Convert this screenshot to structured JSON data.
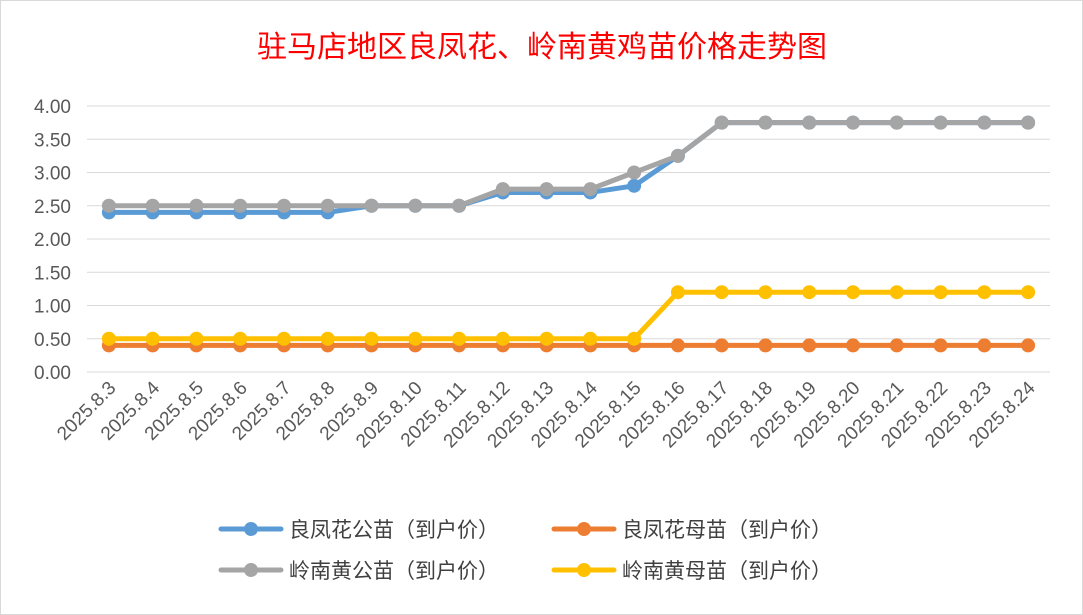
{
  "chart_data": {
    "type": "line",
    "title": "驻马店地区良凤花、岭南黄鸡苗价格走势图",
    "xlabel": "",
    "ylabel": "",
    "ylim": [
      0,
      4
    ],
    "y_ticks": [
      "0.00",
      "0.50",
      "1.00",
      "1.50",
      "2.00",
      "2.50",
      "3.00",
      "3.50",
      "4.00"
    ],
    "grid": true,
    "legend_position": "bottom",
    "categories": [
      "2025.8.3",
      "2025.8.4",
      "2025.8.5",
      "2025.8.6",
      "2025.8.7",
      "2025.8.8",
      "2025.8.9",
      "2025.8.10",
      "2025.8.11",
      "2025.8.12",
      "2025.8.13",
      "2025.8.14",
      "2025.8.15",
      "2025.8.16",
      "2025.8.17",
      "2025.8.18",
      "2025.8.19",
      "2025.8.20",
      "2025.8.21",
      "2025.8.22",
      "2025.8.23",
      "2025.8.24"
    ],
    "series": [
      {
        "name": "良凤花公苗（到户价）",
        "color": "#5b9bd5",
        "values": [
          2.4,
          2.4,
          2.4,
          2.4,
          2.4,
          2.4,
          2.5,
          2.5,
          2.5,
          2.7,
          2.7,
          2.7,
          2.8,
          3.25,
          3.75,
          3.75,
          3.75,
          3.75,
          3.75,
          3.75,
          3.75,
          3.75
        ]
      },
      {
        "name": "良凤花母苗（到户价）",
        "color": "#ed7d31",
        "values": [
          0.4,
          0.4,
          0.4,
          0.4,
          0.4,
          0.4,
          0.4,
          0.4,
          0.4,
          0.4,
          0.4,
          0.4,
          0.4,
          0.4,
          0.4,
          0.4,
          0.4,
          0.4,
          0.4,
          0.4,
          0.4,
          0.4
        ]
      },
      {
        "name": "岭南黄公苗（到户价）",
        "color": "#a5a5a5",
        "values": [
          2.5,
          2.5,
          2.5,
          2.5,
          2.5,
          2.5,
          2.5,
          2.5,
          2.5,
          2.75,
          2.75,
          2.75,
          3.0,
          3.25,
          3.75,
          3.75,
          3.75,
          3.75,
          3.75,
          3.75,
          3.75,
          3.75
        ]
      },
      {
        "name": "岭南黄母苗（到户价）",
        "color": "#ffc000",
        "values": [
          0.5,
          0.5,
          0.5,
          0.5,
          0.5,
          0.5,
          0.5,
          0.5,
          0.5,
          0.5,
          0.5,
          0.5,
          0.5,
          1.2,
          1.2,
          1.2,
          1.2,
          1.2,
          1.2,
          1.2,
          1.2,
          1.2
        ]
      }
    ]
  }
}
